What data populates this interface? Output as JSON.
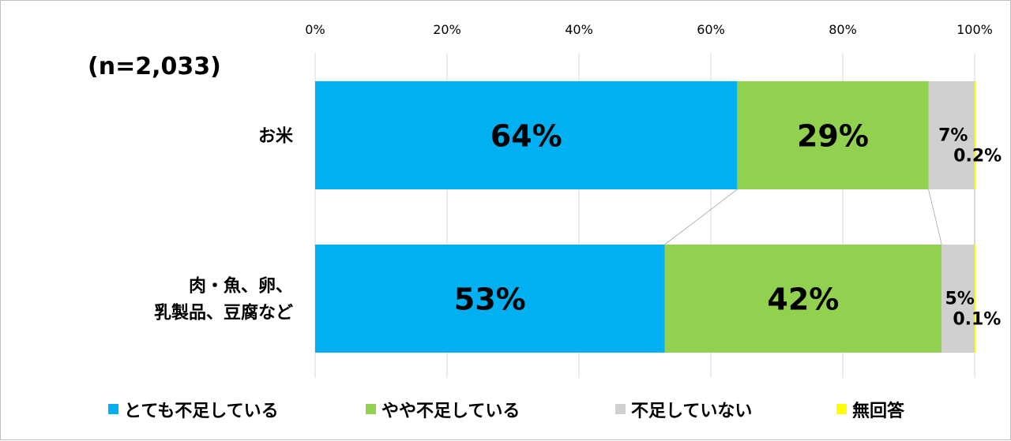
{
  "chart_data": {
    "type": "bar",
    "orientation": "horizontal",
    "stacked": true,
    "note": "(n=2,033)",
    "xlim": [
      0,
      100
    ],
    "x_ticks": [
      "0%",
      "20%",
      "40%",
      "60%",
      "80%",
      "100%"
    ],
    "grid": true,
    "legend_position": "bottom",
    "categories": [
      {
        "lines": [
          "お米"
        ]
      },
      {
        "lines": [
          "肉・魚、卵、",
          "乳製品、豆腐など"
        ]
      }
    ],
    "series": [
      {
        "name": "とても不足している",
        "color": "#00b0f0",
        "values": [
          64,
          53
        ],
        "labels": [
          "64%",
          "53%"
        ]
      },
      {
        "name": "やや不足している",
        "color": "#92d050",
        "values": [
          29,
          42
        ],
        "labels": [
          "29%",
          "42%"
        ]
      },
      {
        "name": "不足していない",
        "color": "#d0d0d0",
        "values": [
          7,
          5
        ],
        "labels": [
          "7%",
          "5%"
        ]
      },
      {
        "name": "無回答",
        "color": "#ffff00",
        "values": [
          0.2,
          0.1
        ],
        "labels": [
          "0.2%",
          "0.1%"
        ]
      }
    ]
  }
}
